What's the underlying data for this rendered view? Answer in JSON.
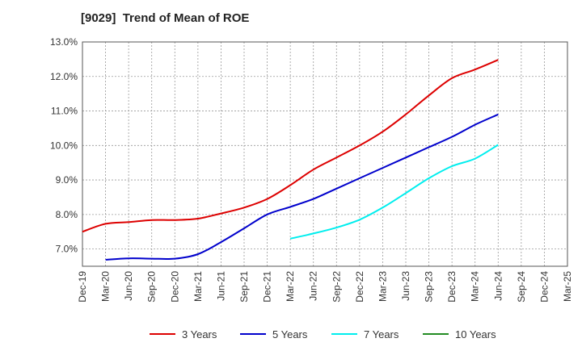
{
  "chart_data": {
    "type": "line",
    "title": "[9029]  Trend of Mean of ROE",
    "y_unit": "%",
    "ylim": [
      6.5,
      13.0
    ],
    "yticks": [
      7.0,
      8.0,
      9.0,
      10.0,
      11.0,
      12.0,
      13.0
    ],
    "ytick_labels": [
      "7.0%",
      "8.0%",
      "9.0%",
      "10.0%",
      "11.0%",
      "12.0%",
      "13.0%"
    ],
    "x_labels": [
      "Dec-19",
      "Mar-20",
      "Jun-20",
      "Sep-20",
      "Dec-20",
      "Mar-21",
      "Jun-21",
      "Sep-21",
      "Dec-21",
      "Mar-22",
      "Jun-22",
      "Sep-22",
      "Dec-22",
      "Mar-23",
      "Jun-23",
      "Sep-23",
      "Dec-23",
      "Mar-24",
      "Jun-24",
      "Sep-24",
      "Dec-24",
      "Mar-25"
    ],
    "grid": true,
    "legend_position": "bottom",
    "series": [
      {
        "name": "3 Years",
        "color": "#dd0000",
        "values": [
          7.5,
          7.73,
          7.78,
          7.84,
          7.84,
          7.88,
          8.03,
          8.2,
          8.45,
          8.85,
          9.3,
          9.65,
          10.0,
          10.4,
          10.9,
          11.45,
          11.95,
          12.2,
          12.48,
          null,
          null,
          null
        ]
      },
      {
        "name": "5 Years",
        "color": "#0000cc",
        "values": [
          null,
          6.69,
          6.73,
          6.72,
          6.72,
          6.85,
          7.2,
          7.6,
          8.0,
          8.22,
          8.45,
          8.75,
          9.05,
          9.35,
          9.65,
          9.95,
          10.25,
          10.6,
          10.9,
          null,
          null,
          null
        ]
      },
      {
        "name": "7 Years",
        "color": "#00eeee",
        "values": [
          null,
          null,
          null,
          null,
          null,
          null,
          null,
          null,
          null,
          7.3,
          7.45,
          7.62,
          7.85,
          8.2,
          8.62,
          9.05,
          9.4,
          9.62,
          10.02,
          null,
          null,
          null
        ]
      },
      {
        "name": "10 Years",
        "color": "#228B22",
        "values": [
          null,
          null,
          null,
          null,
          null,
          null,
          null,
          null,
          null,
          null,
          null,
          null,
          null,
          null,
          null,
          null,
          null,
          null,
          null,
          null,
          null,
          null
        ]
      }
    ]
  }
}
